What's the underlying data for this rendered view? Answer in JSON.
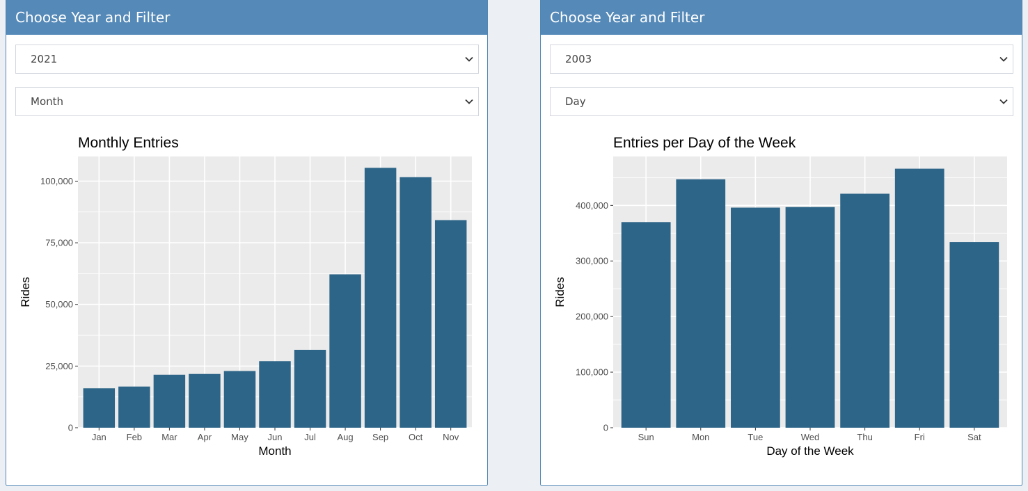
{
  "colors": {
    "header": "#5589b8",
    "bar": "#2d6588",
    "panel": "#ebebeb",
    "grid": "#ffffff"
  },
  "left_panel": {
    "header": "Choose Year and Filter",
    "year_select": "2021",
    "filter_select": "Month"
  },
  "right_panel": {
    "header": "Choose Year and Filter",
    "year_select": "2003",
    "filter_select": "Day"
  },
  "chart_data": [
    {
      "type": "bar",
      "title": "Monthly Entries",
      "xlabel": "Month",
      "ylabel": "Rides",
      "categories": [
        "Jan",
        "Feb",
        "Mar",
        "Apr",
        "May",
        "Jun",
        "Jul",
        "Aug",
        "Sep",
        "Oct",
        "Nov"
      ],
      "values": [
        16000,
        16700,
        21500,
        21800,
        23000,
        27000,
        31600,
        62200,
        105400,
        101600,
        84200
      ],
      "ylim": [
        0,
        110000
      ],
      "yticks": [
        0,
        25000,
        50000,
        75000,
        100000
      ],
      "ytick_labels": [
        "0",
        "25,000",
        "50,000",
        "75,000",
        "100,000"
      ]
    },
    {
      "type": "bar",
      "title": "Entries per Day of the Week",
      "xlabel": "Day of the Week",
      "ylabel": "Rides",
      "categories": [
        "Sun",
        "Mon",
        "Tue",
        "Wed",
        "Thu",
        "Fri",
        "Sat"
      ],
      "values": [
        370000,
        447000,
        396000,
        397000,
        421000,
        466000,
        334000
      ],
      "ylim": [
        0,
        488000
      ],
      "yticks": [
        0,
        100000,
        200000,
        300000,
        400000
      ],
      "ytick_labels": [
        "0",
        "100,000",
        "200,000",
        "300,000",
        "400,000"
      ]
    }
  ]
}
